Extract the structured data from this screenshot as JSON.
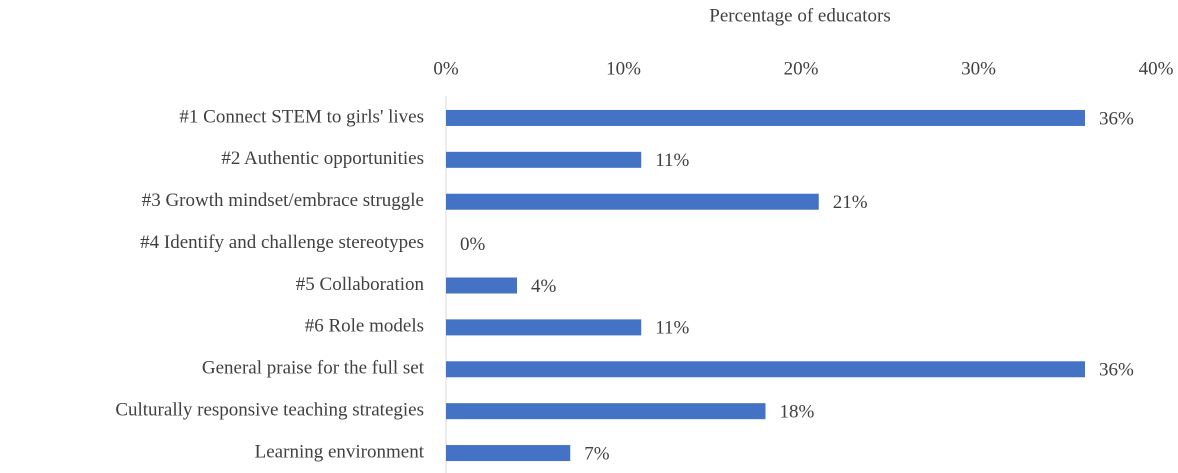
{
  "chart_data": {
    "type": "bar",
    "orientation": "horizontal",
    "x_axis_label": "Percentage of educators",
    "categories": [
      "#1 Connect STEM to girls' lives",
      "#2 Authentic opportunities",
      "#3 Growth mindset/embrace struggle",
      "#4 Identify and challenge stereotypes",
      "#5 Collaboration",
      "#6 Role models",
      "General praise for the full set",
      "Culturally responsive teaching strategies",
      "Learning environment"
    ],
    "values": [
      36,
      11,
      21,
      0,
      4,
      11,
      36,
      18,
      7
    ],
    "value_labels": [
      "36%",
      "11%",
      "21%",
      "0%",
      "4%",
      "11%",
      "36%",
      "18%",
      "7%"
    ],
    "color": "#4472c4",
    "xlim": [
      0,
      40
    ],
    "xticks": [
      {
        "value": 0,
        "label": "0%"
      },
      {
        "value": 10,
        "label": "10%"
      },
      {
        "value": 20,
        "label": "20%"
      },
      {
        "value": 30,
        "label": "30%"
      },
      {
        "value": 40,
        "label": "40%"
      }
    ],
    "grid": false
  }
}
